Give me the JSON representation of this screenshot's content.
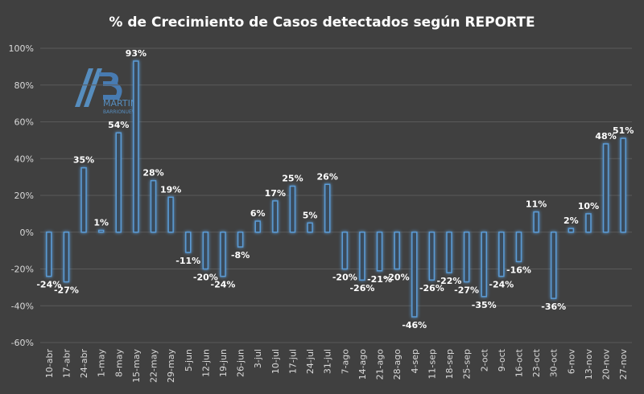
{
  "chart_data": {
    "type": "bar",
    "title": "% de Crecimiento de Casos detectados según REPORTE",
    "xlabel": "",
    "ylabel": "",
    "ylim": [
      -60,
      100
    ],
    "yticks": [
      -60,
      -40,
      -20,
      0,
      20,
      40,
      60,
      80,
      100
    ],
    "ytick_labels": [
      "-60%",
      "-40%",
      "-20%",
      "0%",
      "20%",
      "40%",
      "60%",
      "80%",
      "100%"
    ],
    "grid": true,
    "legend": "none",
    "categories": [
      "10-abr",
      "17-abr",
      "24-abr",
      "1-may",
      "8-may",
      "15-may",
      "22-may",
      "29-may",
      "5-jun",
      "12-jun",
      "19-jun",
      "26-jun",
      "3-jul",
      "10-jul",
      "17-jul",
      "24-jul",
      "31-jul",
      "7-ago",
      "14-ago",
      "21-ago",
      "28-ago",
      "4-sep",
      "11-sep",
      "18-sep",
      "25-sep",
      "2-oct",
      "9-oct",
      "16-oct",
      "23-oct",
      "30-oct",
      "6-nov",
      "13-nov",
      "20-nov",
      "27-nov"
    ],
    "values": [
      -24,
      -27,
      35,
      1,
      54,
      93,
      28,
      19,
      -11,
      -20,
      -24,
      -8,
      6,
      17,
      25,
      5,
      26,
      -20,
      -26,
      -21,
      -20,
      -46,
      -26,
      -22,
      -27,
      -35,
      -24,
      -16,
      11,
      -36,
      2,
      10,
      48,
      51
    ],
    "data_labels": [
      "-24%",
      "-27%",
      "35%",
      "1%",
      "54%",
      "93%",
      "28%",
      "19%",
      "-11%",
      "-20%",
      "-24%",
      "-8%",
      "6%",
      "17%",
      "25%",
      "5%",
      "26%",
      "-20%",
      "-26%",
      "-21%",
      "-20%",
      "-46%",
      "-26%",
      "-22%",
      "-27%",
      "-35%",
      "-24%",
      "-16%",
      "11%",
      "-36%",
      "2%",
      "10%",
      "48%",
      "51%"
    ],
    "colors": {
      "background": "#404040",
      "bar_stroke": "#5b9bd5",
      "bar_fill": "#3a4a5a",
      "grid": "#5a5a5a",
      "text": "#ffffff",
      "axis_text": "#d9d9d9"
    }
  },
  "logo": {
    "mark": "MB",
    "name": "MARTIN",
    "subname": "BARRIONUEVO"
  }
}
